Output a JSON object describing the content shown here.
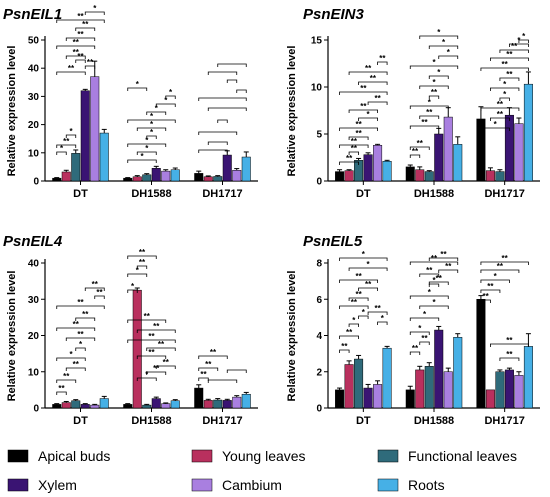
{
  "legend": {
    "items": [
      {
        "label": "Apical buds",
        "color": "#000000"
      },
      {
        "label": "Young leaves",
        "color": "#b9305e"
      },
      {
        "label": "Functional leaves",
        "color": "#2f6b7b"
      },
      {
        "label": "Xylem",
        "color": "#3a1473"
      },
      {
        "label": "Cambium",
        "color": "#a97fe0"
      },
      {
        "label": "Roots",
        "color": "#46b0e6"
      }
    ]
  },
  "chart_data": [
    {
      "type": "bar",
      "title": "PsnEIL1",
      "ylabel": "Relative expression level",
      "ylim": [
        0,
        50
      ],
      "yticks": [
        "0",
        "10",
        "20",
        "30",
        "40",
        "50"
      ],
      "categories": [
        "DT",
        "DH1588",
        "DH1717"
      ],
      "values": [
        [
          1.0,
          3.2,
          9.8,
          32.0,
          37.0,
          17.0
        ],
        [
          1.0,
          1.5,
          2.2,
          4.5,
          3.5,
          4.0
        ],
        [
          2.7,
          1.5,
          1.6,
          9.2,
          3.8,
          8.5
        ]
      ],
      "errors": [
        [
          0.2,
          0.6,
          1.2,
          0.5,
          5.5,
          1.3
        ],
        [
          0.2,
          0.4,
          0.4,
          0.7,
          0.5,
          0.6
        ],
        [
          0.8,
          0.3,
          0.3,
          1.5,
          0.6,
          1.8
        ]
      ],
      "significance": [
        "*",
        "*",
        "**",
        "**",
        "**",
        "**",
        "**",
        "**",
        "**",
        "**",
        "**",
        "*",
        "*",
        "*",
        "*",
        "*",
        "*",
        "*",
        "*",
        "*",
        "*",
        "*"
      ]
    },
    {
      "type": "bar",
      "title": "PsnEIN3",
      "ylabel": "Relative expression level",
      "ylim": [
        0,
        15
      ],
      "yticks": [
        "0",
        "5",
        "10",
        "15"
      ],
      "categories": [
        "DT",
        "DH1588",
        "DH1717"
      ],
      "values": [
        [
          1.0,
          1.1,
          2.2,
          2.8,
          3.8,
          2.1
        ],
        [
          1.5,
          1.2,
          1.0,
          5.0,
          6.8,
          3.9
        ],
        [
          6.6,
          1.1,
          1.0,
          7.0,
          6.1,
          10.3
        ]
      ],
      "errors": [
        [
          0.2,
          0.1,
          0.2,
          0.2,
          0.1,
          0.1
        ],
        [
          0.2,
          0.3,
          0.1,
          0.6,
          1.0,
          0.8
        ],
        [
          1.3,
          0.3,
          0.2,
          0.8,
          0.6,
          1.3
        ]
      ],
      "significance": [
        "**",
        "**",
        "**",
        "**",
        "**",
        "*",
        "**",
        "**",
        "**",
        "**",
        "**",
        "**",
        "**",
        "**",
        "**",
        "**",
        "*",
        "**",
        "*",
        "*",
        "*",
        "*",
        "*",
        "*",
        "*",
        "**",
        "**",
        "*",
        "*",
        "**",
        "**",
        "**",
        "**",
        "*",
        "*"
      ]
    },
    {
      "type": "bar",
      "title": "PsnEIL4",
      "ylabel": "Relative expression level",
      "ylim": [
        0,
        40
      ],
      "yticks": [
        "0",
        "10",
        "20",
        "30",
        "40"
      ],
      "categories": [
        "DT",
        "DH1588",
        "DH1717"
      ],
      "values": [
        [
          1.0,
          1.5,
          2.0,
          1.0,
          0.8,
          2.6
        ],
        [
          1.0,
          32.5,
          0.8,
          2.6,
          1.2,
          2.0
        ],
        [
          5.5,
          2.1,
          2.2,
          2.1,
          3.0,
          3.8
        ]
      ],
      "errors": [
        [
          0.2,
          0.3,
          0.3,
          0.2,
          0.2,
          0.6
        ],
        [
          0.2,
          0.6,
          0.2,
          0.4,
          0.2,
          0.3
        ],
        [
          0.9,
          0.3,
          0.4,
          0.3,
          0.4,
          0.5
        ]
      ],
      "significance": [
        "**",
        "**",
        "**",
        "*",
        "*",
        "**",
        "**",
        "**",
        "**",
        "**",
        "**",
        "*",
        "*",
        "**",
        "**",
        "*",
        "**",
        "**",
        "**",
        "**",
        "**",
        "**",
        "**",
        "**",
        "**",
        "**"
      ]
    },
    {
      "type": "bar",
      "title": "PsnEIL5",
      "ylabel": "Relative expression level",
      "ylim": [
        0,
        8
      ],
      "yticks": [
        "0",
        "2",
        "4",
        "6",
        "8"
      ],
      "categories": [
        "DT",
        "DH1588",
        "DH1717"
      ],
      "values": [
        [
          1.0,
          2.4,
          2.7,
          1.1,
          1.3,
          3.3
        ],
        [
          1.0,
          2.1,
          2.3,
          4.3,
          2.0,
          3.9
        ],
        [
          6.0,
          1.0,
          2.0,
          2.1,
          1.8,
          3.4
        ]
      ],
      "errors": [
        [
          0.1,
          0.2,
          0.2,
          0.2,
          0.2,
          0.1
        ],
        [
          0.2,
          0.2,
          0.2,
          0.2,
          0.2,
          0.2
        ],
        [
          0.2,
          0.0,
          0.1,
          0.1,
          0.2,
          0.7
        ]
      ],
      "significance": [
        "**",
        "**",
        "*",
        "*",
        "**",
        "**",
        "**",
        "**",
        "**",
        "*",
        "*",
        "*",
        "**",
        "**",
        "*",
        "*",
        "*",
        "*",
        "*",
        "**",
        "**",
        "**",
        "**",
        "**",
        "**",
        "**",
        "*",
        "**",
        "**",
        "**",
        "**"
      ]
    }
  ]
}
